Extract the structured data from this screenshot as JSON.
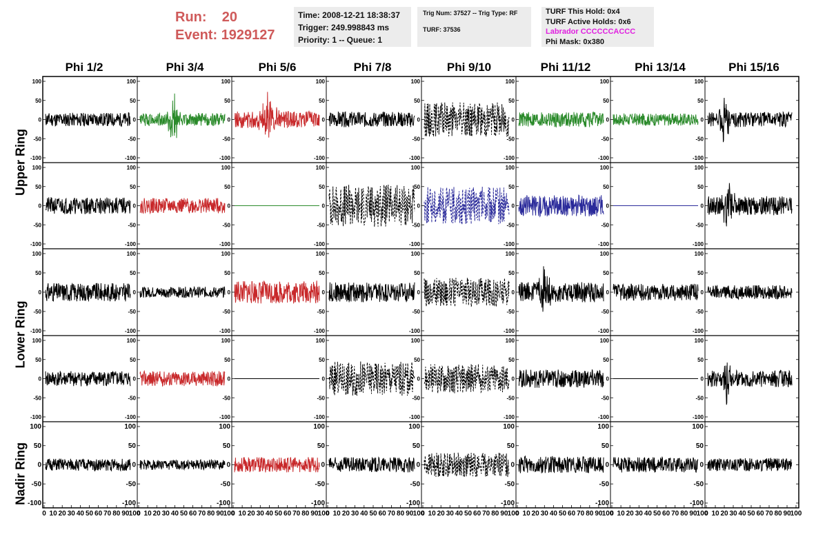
{
  "header": {
    "run_label": "Run:",
    "run_value": "20",
    "event_label": "Event:",
    "event_value": "1929127"
  },
  "time_box": {
    "time": "Time: 2008-12-21 18:38:37",
    "trigger": "Trigger: 249.998843 ms",
    "priority": "Priority: 1 -- Queue: 1"
  },
  "trig_box": {
    "trig": "Trig Num: 37527 -- Trig Type: RF",
    "turf": "TURF: 37536"
  },
  "turf_box": {
    "this_hold": "TURF This Hold: 0x4",
    "active_holds": "TURF Active Holds: 0x6",
    "labrador": "Labrador CCCCCCACCC",
    "phi_mask": "Phi Mask: 0x380"
  },
  "columns": [
    "Phi 1/2",
    "Phi 3/4",
    "Phi 5/6",
    "Phi 7/8",
    "Phi 9/10",
    "Phi 11/12",
    "Phi 13/14",
    "Phi 15/16"
  ],
  "rings": [
    {
      "name": "Upper Ring",
      "rows": [
        0,
        1
      ]
    },
    {
      "name": "Lower Ring",
      "rows": [
        2,
        3
      ]
    },
    {
      "name": "Nadir Ring",
      "rows": [
        4
      ]
    }
  ],
  "colors": {
    "black": "#000000",
    "green": "#2a8a2a",
    "red": "#c8282a",
    "blue": "#2a2a9a",
    "run_text": "#cf5a5a",
    "labrador": "#e020e0"
  },
  "chart_data": {
    "type": "line",
    "title": "",
    "xlabel": "",
    "ylabel": "",
    "xlim": [
      0,
      100
    ],
    "ylim": [
      -100,
      100
    ],
    "ytick_labels": [
      "-100",
      "-50",
      "0",
      "50",
      "100"
    ],
    "xtick_labels": [
      "0",
      "10",
      "20",
      "30",
      "40",
      "50",
      "60",
      "70",
      "80",
      "90",
      "100"
    ],
    "panels": [
      [
        {
          "color": "black",
          "style": "solid",
          "amp": 18,
          "seed": 11
        },
        {
          "color": "green",
          "style": "solid",
          "amp": 17,
          "seed": 12,
          "burst": {
            "center": 40,
            "width": 6,
            "peak": 55
          }
        },
        {
          "color": "red",
          "style": "solid",
          "amp": 22,
          "seed": 13,
          "burst": {
            "center": 40,
            "width": 8,
            "peak": 55
          }
        },
        {
          "color": "black",
          "style": "solid",
          "amp": 20,
          "seed": 14
        },
        {
          "color": "black",
          "style": "dashed",
          "amp": 45,
          "seed": 15
        },
        {
          "color": "green",
          "style": "solid",
          "amp": 20,
          "seed": 16
        },
        {
          "color": "green",
          "style": "solid",
          "amp": 16,
          "seed": 17
        },
        {
          "color": "black",
          "style": "solid",
          "amp": 20,
          "seed": 18,
          "burst": {
            "center": 20,
            "width": 6,
            "peak": 45
          }
        }
      ],
      [
        {
          "color": "black",
          "style": "solid",
          "amp": 22,
          "seed": 21
        },
        {
          "color": "red",
          "style": "solid",
          "amp": 20,
          "seed": 22
        },
        {
          "color": "green",
          "style": "flat",
          "amp": 0,
          "seed": 23
        },
        {
          "color": "black",
          "style": "dashed",
          "amp": 55,
          "seed": 24
        },
        {
          "color": "blue",
          "style": "dashed",
          "amp": 50,
          "seed": 25
        },
        {
          "color": "blue",
          "style": "solid",
          "amp": 28,
          "seed": 26
        },
        {
          "color": "blue",
          "style": "flat",
          "amp": 0,
          "seed": 27
        },
        {
          "color": "black",
          "style": "solid",
          "amp": 25,
          "seed": 28,
          "burst": {
            "center": 25,
            "width": 6,
            "peak": 60
          }
        }
      ],
      [
        {
          "color": "black",
          "style": "solid",
          "amp": 24,
          "seed": 31
        },
        {
          "color": "black",
          "style": "solid",
          "amp": 14,
          "seed": 32
        },
        {
          "color": "red",
          "style": "solid",
          "amp": 30,
          "seed": 33
        },
        {
          "color": "black",
          "style": "solid",
          "amp": 26,
          "seed": 34
        },
        {
          "color": "black",
          "style": "dashed",
          "amp": 38,
          "seed": 35
        },
        {
          "color": "black",
          "style": "solid",
          "amp": 26,
          "seed": 36,
          "burst": {
            "center": 30,
            "width": 6,
            "peak": 60
          }
        },
        {
          "color": "black",
          "style": "solid",
          "amp": 22,
          "seed": 37
        },
        {
          "color": "black",
          "style": "solid",
          "amp": 18,
          "seed": 38
        }
      ],
      [
        {
          "color": "black",
          "style": "solid",
          "amp": 20,
          "seed": 41
        },
        {
          "color": "red",
          "style": "solid",
          "amp": 20,
          "seed": 42
        },
        {
          "color": "black",
          "style": "flat",
          "amp": 0,
          "seed": 43
        },
        {
          "color": "black",
          "style": "dashed",
          "amp": 45,
          "seed": 44
        },
        {
          "color": "black",
          "style": "dashed",
          "amp": 38,
          "seed": 45
        },
        {
          "color": "black",
          "style": "solid",
          "amp": 24,
          "seed": 46
        },
        {
          "color": "black",
          "style": "flat",
          "amp": 0,
          "seed": 47
        },
        {
          "color": "black",
          "style": "solid",
          "amp": 22,
          "seed": 48,
          "burst": {
            "center": 22,
            "width": 5,
            "peak": 70
          }
        }
      ],
      [
        {
          "color": "black",
          "style": "solid",
          "amp": 16,
          "seed": 51
        },
        {
          "color": "black",
          "style": "solid",
          "amp": 13,
          "seed": 52
        },
        {
          "color": "red",
          "style": "solid",
          "amp": 20,
          "seed": 53
        },
        {
          "color": "black",
          "style": "solid",
          "amp": 20,
          "seed": 54
        },
        {
          "color": "black",
          "style": "dashed",
          "amp": 32,
          "seed": 55
        },
        {
          "color": "black",
          "style": "solid",
          "amp": 22,
          "seed": 56
        },
        {
          "color": "black",
          "style": "solid",
          "amp": 20,
          "seed": 57
        },
        {
          "color": "black",
          "style": "solid",
          "amp": 17,
          "seed": 58
        }
      ]
    ]
  }
}
